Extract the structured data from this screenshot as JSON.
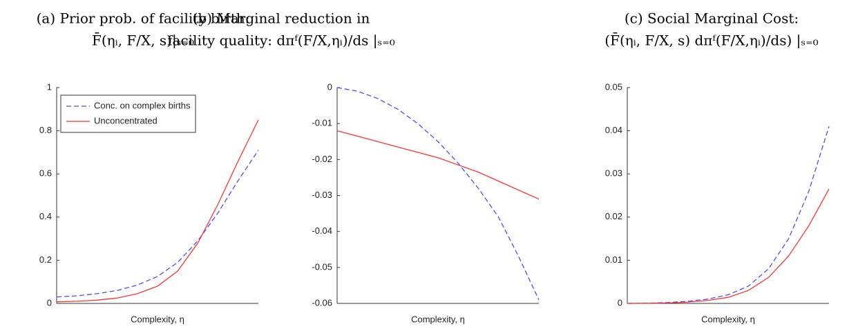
{
  "chart_data": [
    {
      "type": "line",
      "title": "(a) Prior prob. of facility birth:",
      "subtitle": "F̄(ηᵢ, F/X, s)|ₛ₌₀",
      "x_label": "Complexity, η",
      "x": [
        0,
        0.1,
        0.2,
        0.3,
        0.4,
        0.5,
        0.6,
        0.7,
        0.8,
        0.9,
        1
      ],
      "xlim": [
        0,
        1
      ],
      "ylim": [
        0,
        1
      ],
      "yticks": [
        0,
        0.2,
        0.4,
        0.6,
        0.8,
        1
      ],
      "legend": "upper left",
      "series": [
        {
          "name": "Conc. on complex births",
          "color": "#4a4aff",
          "dashed": true,
          "values": [
            0.03,
            0.035,
            0.045,
            0.06,
            0.085,
            0.125,
            0.19,
            0.29,
            0.42,
            0.57,
            0.71
          ]
        },
        {
          "name": "Unconcentrated",
          "color": "#ff3030",
          "dashed": false,
          "values": [
            0.007,
            0.01,
            0.015,
            0.025,
            0.045,
            0.08,
            0.15,
            0.28,
            0.46,
            0.66,
            0.85
          ]
        }
      ]
    },
    {
      "type": "line",
      "title": "(b) Marginal reduction in",
      "subtitle": "facility quality: dπᶠ(F/X,ηᵢ)/ds |ₛ₌₀",
      "x_label": "Complexity, η",
      "x": [
        0,
        0.1,
        0.2,
        0.3,
        0.4,
        0.5,
        0.6,
        0.7,
        0.8,
        0.9,
        1
      ],
      "xlim": [
        0,
        1
      ],
      "ylim": [
        -0.06,
        0
      ],
      "yticks": [
        -0.06,
        -0.05,
        -0.04,
        -0.03,
        -0.02,
        -0.01,
        0
      ],
      "series": [
        {
          "color": "#4a4aff",
          "dashed": true,
          "values": [
            0,
            -0.001,
            -0.003,
            -0.006,
            -0.01,
            -0.015,
            -0.021,
            -0.028,
            -0.036,
            -0.047,
            -0.059
          ]
        },
        {
          "color": "#ff3030",
          "dashed": false,
          "values": [
            -0.012,
            -0.0135,
            -0.015,
            -0.0165,
            -0.018,
            -0.0195,
            -0.0215,
            -0.0235,
            -0.026,
            -0.0285,
            -0.031
          ]
        }
      ]
    },
    {
      "type": "line",
      "title": "(c) Social Marginal Cost:",
      "subtitle": "(F̄(ηᵢ, F/X, s) dπᶠ(F/X,ηᵢ)/ds) |ₛ₌₀",
      "x_label": "Complexity, η",
      "x": [
        0,
        0.1,
        0.2,
        0.3,
        0.4,
        0.5,
        0.6,
        0.7,
        0.8,
        0.9,
        1
      ],
      "xlim": [
        0,
        1
      ],
      "ylim": [
        0,
        0.05
      ],
      "yticks": [
        0,
        0.01,
        0.02,
        0.03,
        0.04,
        0.05
      ],
      "series": [
        {
          "color": "#4a4aff",
          "dashed": true,
          "values": [
            0,
            5e-05,
            0.0002,
            0.0005,
            0.001,
            0.002,
            0.004,
            0.008,
            0.015,
            0.026,
            0.041
          ]
        },
        {
          "color": "#ff3030",
          "dashed": false,
          "values": [
            0,
            3e-05,
            0.0001,
            0.0003,
            0.0007,
            0.0014,
            0.003,
            0.006,
            0.011,
            0.018,
            0.0265
          ]
        }
      ]
    }
  ]
}
